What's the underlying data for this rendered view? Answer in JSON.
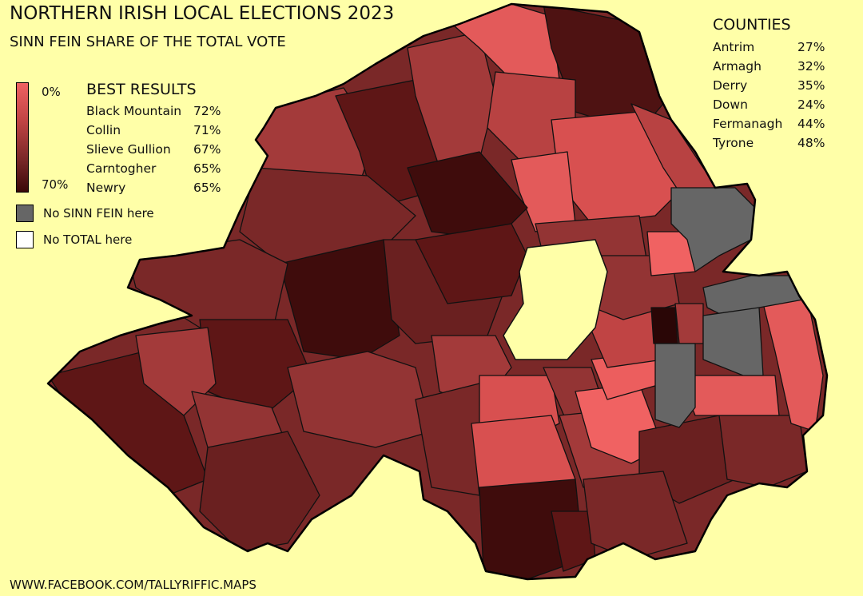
{
  "title": "NORTHERN IRISH LOCAL ELECTIONS 2023",
  "subtitle": "SINN FEIN  SHARE OF THE TOTAL VOTE",
  "legend": {
    "scale_min": "0%",
    "scale_max": "70%",
    "no_party": "No SINN FEIN  here",
    "no_total": "No TOTAL here",
    "colors": {
      "low": "#f06262",
      "high": "#3a0808",
      "no_party": "#666666",
      "no_total": "#ffffff",
      "background": "#ffffa8"
    }
  },
  "best_results": {
    "heading": "BEST RESULTS",
    "items": [
      {
        "name": "Black Mountain",
        "value": "72%"
      },
      {
        "name": "Collin",
        "value": "71%"
      },
      {
        "name": "Slieve Gullion",
        "value": "67%"
      },
      {
        "name": "Carntogher",
        "value": "65%"
      },
      {
        "name": "Newry",
        "value": "65%"
      }
    ]
  },
  "counties": {
    "heading": "COUNTIES",
    "items": [
      {
        "name": "Antrim",
        "value": "27%"
      },
      {
        "name": "Armagh",
        "value": "32%"
      },
      {
        "name": "Derry",
        "value": "35%"
      },
      {
        "name": "Down",
        "value": "24%"
      },
      {
        "name": "Fermanagh",
        "value": "44%"
      },
      {
        "name": "Tyrone",
        "value": "48%"
      }
    ]
  },
  "footer": "WWW.FACEBOOK.COM/TALLYRIFFIC.MAPS"
}
